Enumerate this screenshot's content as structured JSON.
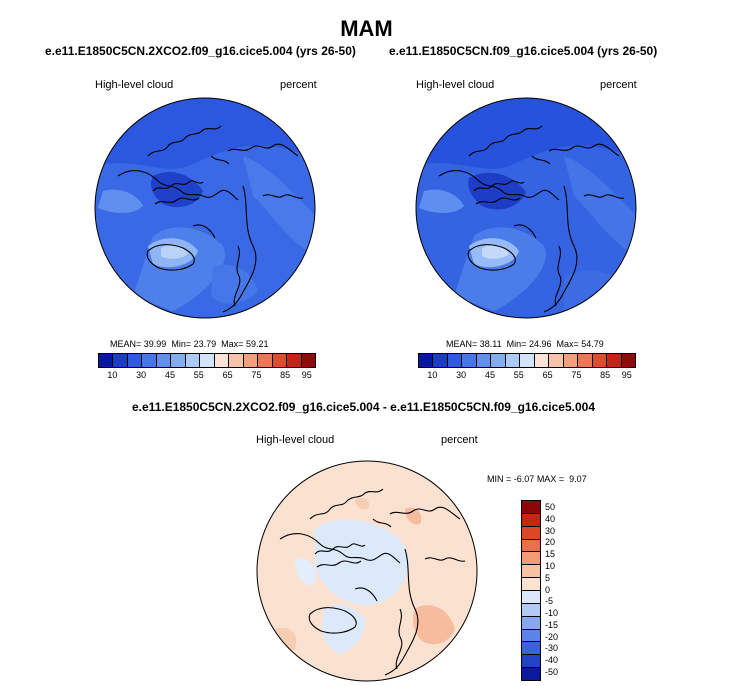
{
  "page": {
    "title": "MAM"
  },
  "panels": [
    {
      "title": "e.e11.E1850C5CN.2XCO2.f09_g16.cice5.004 (yrs 26-50)",
      "variable": "High-level cloud",
      "units": "percent",
      "stats": {
        "mean_label": "MEAN=",
        "mean": "39.99",
        "min_label": "Min=",
        "min": "23.79",
        "max_label": "Max=",
        "max": "59.21"
      }
    },
    {
      "title": "e.e11.E1850C5CN.f09_g16.cice5.004 (yrs 26-50)",
      "variable": "High-level cloud",
      "units": "percent",
      "stats": {
        "mean_label": "MEAN=",
        "mean": "38.11",
        "min_label": "Min=",
        "min": "24.96",
        "max_label": "Max=",
        "max": "54.79"
      }
    }
  ],
  "diff_panel": {
    "title": "e.e11.E1850C5CN.2XCO2.f09_g16.cice5.004 - e.e11.E1850C5CN.f09_g16.cice5.004",
    "variable": "High-level cloud",
    "units": "percent",
    "stats": {
      "min_label": "MIN =",
      "min": "-6.07",
      "max_label": "MAX =",
      "max": "9.07"
    }
  },
  "colorbar_abs": {
    "colors": [
      "#08179e",
      "#1b3cc8",
      "#2f5be0",
      "#4577ea",
      "#5f90f0",
      "#83acf5",
      "#aacaf8",
      "#d3e5fb",
      "#fbe4d6",
      "#f8c4a9",
      "#f4a07e",
      "#ee7652",
      "#e14a2f",
      "#c42518",
      "#910a0a"
    ],
    "tick_labels": [
      "10",
      "30",
      "45",
      "55",
      "65",
      "75",
      "85",
      "95"
    ]
  },
  "colorbar_diff": {
    "colors": [
      "#0b1a9c",
      "#2244c4",
      "#3a63da",
      "#5c84e6",
      "#86a8ee",
      "#b3cbf4",
      "#dbe8fb",
      "#fbe2d3",
      "#f6c2a3",
      "#f19c75",
      "#ea7049",
      "#dc4826",
      "#c32612",
      "#8c0808"
    ],
    "tick_labels": [
      "50",
      "40",
      "30",
      "20",
      "15",
      "10",
      "5",
      "0",
      "-5",
      "-10",
      "-15",
      "-20",
      "-30",
      "-40",
      "-50"
    ]
  },
  "map_fill": {
    "panel1": {
      "base": "#3a69e6",
      "mid": "#5f90f0",
      "light": "#8fb5f5",
      "dark": "#1f40c8"
    },
    "panel2": {
      "base": "#3564e2",
      "mid": "#5e8ff0",
      "light": "#97bbf6",
      "dark": "#1d3dc6"
    },
    "diff": {
      "base": "#fbe1cf",
      "warm": "#f5bd9e",
      "cool": "#dce9fb"
    }
  }
}
